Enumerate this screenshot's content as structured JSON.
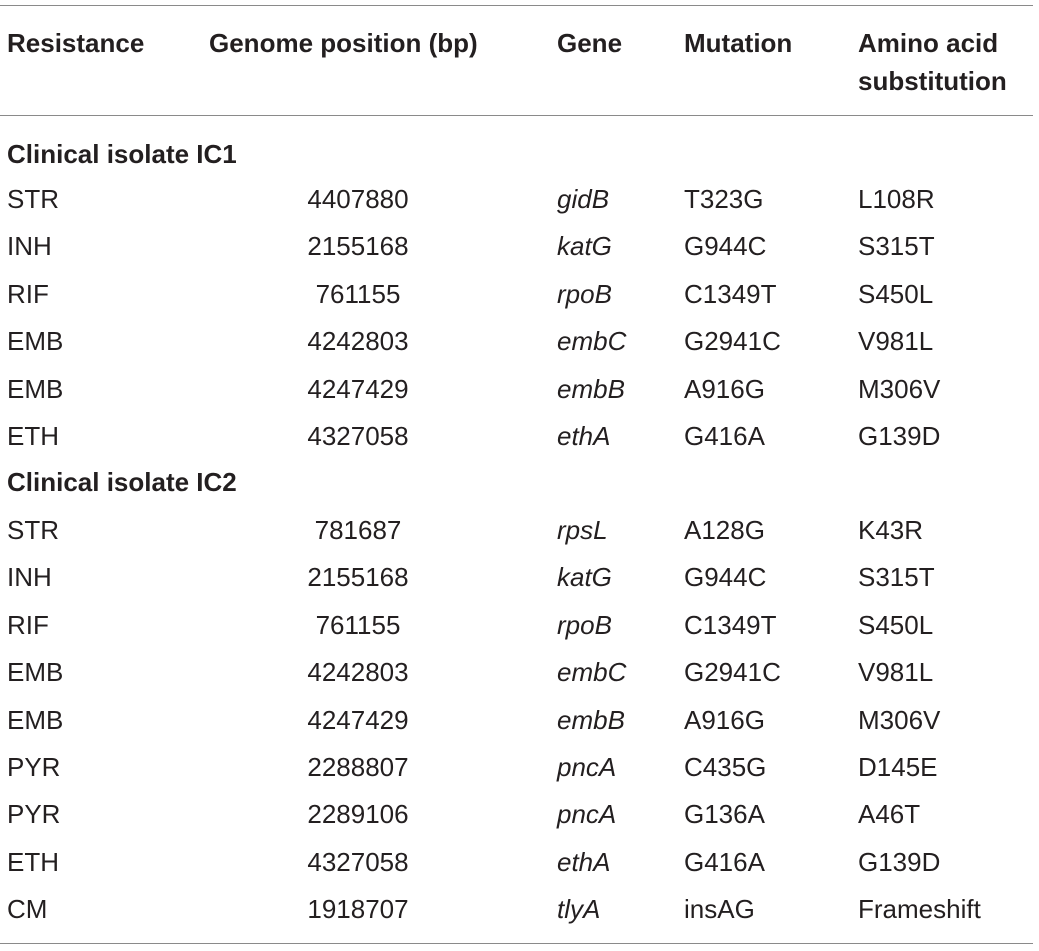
{
  "headers": {
    "resistance": "Resistance",
    "genome_position": "Genome position (bp)",
    "gene": "Gene",
    "mutation": "Mutation",
    "amino_acid_substitution": "Amino acid substitution"
  },
  "groups": [
    {
      "title": "Clinical isolate IC1",
      "rows": [
        {
          "resistance": "STR",
          "position": "4407880",
          "gene": "gidB",
          "mutation": "T323G",
          "substitution": "L108R"
        },
        {
          "resistance": "INH",
          "position": "2155168",
          "gene": "katG",
          "mutation": "G944C",
          "substitution": "S315T"
        },
        {
          "resistance": "RIF",
          "position": "761155",
          "gene": "rpoB",
          "mutation": "C1349T",
          "substitution": "S450L"
        },
        {
          "resistance": "EMB",
          "position": "4242803",
          "gene": "embC",
          "mutation": "G2941C",
          "substitution": "V981L"
        },
        {
          "resistance": "EMB",
          "position": "4247429",
          "gene": "embB",
          "mutation": "A916G",
          "substitution": "M306V"
        },
        {
          "resistance": "ETH",
          "position": "4327058",
          "gene": "ethA",
          "mutation": "G416A",
          "substitution": "G139D"
        }
      ]
    },
    {
      "title": "Clinical isolate IC2",
      "rows": [
        {
          "resistance": "STR",
          "position": "781687",
          "gene": "rpsL",
          "mutation": "A128G",
          "substitution": "K43R"
        },
        {
          "resistance": "INH",
          "position": "2155168",
          "gene": "katG",
          "mutation": "G944C",
          "substitution": "S315T"
        },
        {
          "resistance": "RIF",
          "position": "761155",
          "gene": "rpoB",
          "mutation": "C1349T",
          "substitution": "S450L"
        },
        {
          "resistance": "EMB",
          "position": "4242803",
          "gene": "embC",
          "mutation": "G2941C",
          "substitution": "V981L"
        },
        {
          "resistance": "EMB",
          "position": "4247429",
          "gene": "embB",
          "mutation": "A916G",
          "substitution": "M306V"
        },
        {
          "resistance": "PYR",
          "position": "2288807",
          "gene": "pncA",
          "mutation": "C435G",
          "substitution": "D145E"
        },
        {
          "resistance": "PYR",
          "position": "2289106",
          "gene": "pncA",
          "mutation": "G136A",
          "substitution": "A46T"
        },
        {
          "resistance": "ETH",
          "position": "4327058",
          "gene": "ethA",
          "mutation": "G416A",
          "substitution": "G139D"
        },
        {
          "resistance": "CM",
          "position": "1918707",
          "gene": "tlyA",
          "mutation": "insAG",
          "substitution": "Frameshift"
        }
      ]
    }
  ]
}
